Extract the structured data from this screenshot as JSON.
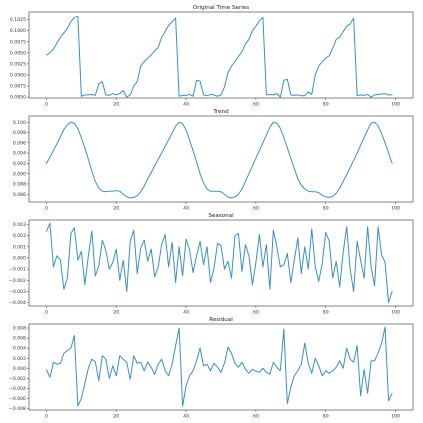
{
  "style": {
    "line_color": "#3b8fc0"
  },
  "chart_data": [
    {
      "type": "line",
      "title": "Original Time Series",
      "xlim": [
        -5,
        105
      ],
      "ylim": [
        0.0848,
        0.1042
      ],
      "xticks": [
        0,
        20,
        40,
        60,
        80,
        100
      ],
      "yticks": [
        0.085,
        0.0875,
        0.09,
        0.0925,
        0.095,
        0.0975,
        0.1,
        0.1025
      ],
      "ytick_labels": [
        "0.0850",
        "0.0875",
        "0.0900",
        "0.0925",
        "0.0950",
        "0.0975",
        "0.1000",
        "0.1025"
      ],
      "x": [
        0,
        1,
        2,
        3,
        4,
        5,
        6,
        7,
        8,
        9,
        10,
        11,
        12,
        13,
        14,
        15,
        16,
        17,
        18,
        19,
        20,
        21,
        22,
        23,
        24,
        25,
        26,
        27,
        28,
        29,
        30,
        31,
        32,
        33,
        34,
        35,
        36,
        37,
        38,
        39,
        40,
        41,
        42,
        43,
        44,
        45,
        46,
        47,
        48,
        49,
        50,
        51,
        52,
        53,
        54,
        55,
        56,
        57,
        58,
        59,
        60,
        61,
        62,
        63,
        64,
        65,
        66,
        67,
        68,
        69,
        70,
        71,
        72,
        73,
        74,
        75,
        76,
        77,
        78,
        79,
        80,
        81,
        82,
        83,
        84,
        85,
        86,
        87,
        88,
        89,
        90,
        91,
        92,
        93,
        94,
        95,
        96,
        97,
        98,
        99
      ],
      "y": [
        0.0945,
        0.095,
        0.0958,
        0.0972,
        0.0985,
        0.0995,
        0.1005,
        0.102,
        0.103,
        0.1032,
        0.0852,
        0.0855,
        0.0855,
        0.0856,
        0.0854,
        0.088,
        0.0885,
        0.0855,
        0.0854,
        0.0858,
        0.0855,
        0.0858,
        0.0865,
        0.085,
        0.0855,
        0.0875,
        0.0885,
        0.092,
        0.093,
        0.0938,
        0.0945,
        0.0955,
        0.0962,
        0.0985,
        0.0998,
        0.1012,
        0.102,
        0.1028,
        0.0852,
        0.0854,
        0.0854,
        0.0856,
        0.0852,
        0.0888,
        0.0886,
        0.0855,
        0.0853,
        0.0856,
        0.0855,
        0.0852,
        0.0855,
        0.0873,
        0.0905,
        0.092,
        0.093,
        0.0942,
        0.0952,
        0.097,
        0.098,
        0.1,
        0.101,
        0.1022,
        0.103,
        0.0855,
        0.0856,
        0.0855,
        0.0858,
        0.085,
        0.0888,
        0.089,
        0.0855,
        0.0854,
        0.0855,
        0.0853,
        0.0853,
        0.0862,
        0.0856,
        0.09,
        0.092,
        0.093,
        0.0938,
        0.0943,
        0.096,
        0.098,
        0.0985,
        0.0998,
        0.101,
        0.1015,
        0.1028,
        0.0853,
        0.0855,
        0.0854,
        0.0856,
        0.085,
        0.0855,
        0.0856,
        0.0857,
        0.0858,
        0.0855,
        0.0855
      ]
    },
    {
      "type": "line",
      "title": "Trend",
      "xlim": [
        -5,
        105
      ],
      "ylim": [
        0.0845,
        0.1012
      ],
      "xticks": [
        0,
        20,
        40,
        60,
        80,
        100
      ],
      "yticks": [
        0.086,
        0.088,
        0.09,
        0.092,
        0.094,
        0.096,
        0.098,
        0.1
      ],
      "ytick_labels": [
        "0.086",
        "0.088",
        "0.090",
        "0.092",
        "0.094",
        "0.096",
        "0.098",
        "0.100"
      ],
      "x": [
        0,
        1,
        2,
        3,
        4,
        5,
        6,
        7,
        8,
        9,
        10,
        11,
        12,
        13,
        14,
        15,
        16,
        17,
        18,
        19,
        20,
        21,
        22,
        23,
        24,
        25,
        26,
        27,
        28,
        29,
        30,
        31,
        32,
        33,
        34,
        35,
        36,
        37,
        38,
        39,
        40,
        41,
        42,
        43,
        44,
        45,
        46,
        47,
        48,
        49,
        50,
        51,
        52,
        53,
        54,
        55,
        56,
        57,
        58,
        59,
        60,
        61,
        62,
        63,
        64,
        65,
        66,
        67,
        68,
        69,
        70,
        71,
        72,
        73,
        74,
        75,
        76,
        77,
        78,
        79,
        80,
        81,
        82,
        83,
        84,
        85,
        86,
        87,
        88,
        89,
        90,
        91,
        92,
        93,
        94,
        95,
        96,
        97,
        98,
        99
      ],
      "y": [
        0.092,
        0.0932,
        0.0945,
        0.0958,
        0.0972,
        0.0986,
        0.0995,
        0.1,
        0.0998,
        0.0987,
        0.097,
        0.095,
        0.0928,
        0.0905,
        0.0885,
        0.0872,
        0.0866,
        0.0865,
        0.0866,
        0.0866,
        0.0867,
        0.0866,
        0.086,
        0.0855,
        0.0853,
        0.0854,
        0.0857,
        0.0865,
        0.0876,
        0.089,
        0.0902,
        0.0915,
        0.0928,
        0.094,
        0.0953,
        0.0966,
        0.0979,
        0.0992,
        0.1,
        0.0997,
        0.0985,
        0.0965,
        0.0945,
        0.0923,
        0.09,
        0.0882,
        0.087,
        0.0866,
        0.0866,
        0.0866,
        0.0865,
        0.086,
        0.0855,
        0.0853,
        0.0855,
        0.086,
        0.087,
        0.0885,
        0.09,
        0.0915,
        0.093,
        0.0945,
        0.096,
        0.0975,
        0.099,
        0.1,
        0.0998,
        0.0988,
        0.097,
        0.095,
        0.093,
        0.091,
        0.089,
        0.0878,
        0.087,
        0.0866,
        0.0865,
        0.0865,
        0.0863,
        0.0858,
        0.0855,
        0.0854,
        0.0856,
        0.0862,
        0.0872,
        0.0885,
        0.0898,
        0.0912,
        0.0926,
        0.094,
        0.0955,
        0.097,
        0.0985,
        0.0998,
        0.1,
        0.0993,
        0.0978,
        0.096,
        0.094,
        0.092
      ]
    },
    {
      "type": "line",
      "title": "Seasonal",
      "xlim": [
        -5,
        105
      ],
      "ylim": [
        -0.0043,
        0.0034
      ],
      "xticks": [
        0,
        20,
        40,
        60,
        80,
        100
      ],
      "yticks": [
        -0.004,
        -0.003,
        -0.002,
        -0.001,
        0.0,
        0.001,
        0.002,
        0.003
      ],
      "ytick_labels": [
        "−0.004",
        "−0.003",
        "−0.002",
        "−0.001",
        "0.000",
        "0.001",
        "0.002",
        "0.003"
      ],
      "x": [
        0,
        1,
        2,
        3,
        4,
        5,
        6,
        7,
        8,
        9,
        10,
        11,
        12,
        13,
        14,
        15,
        16,
        17,
        18,
        19,
        20,
        21,
        22,
        23,
        24,
        25,
        26,
        27,
        28,
        29,
        30,
        31,
        32,
        33,
        34,
        35,
        36,
        37,
        38,
        39,
        40,
        41,
        42,
        43,
        44,
        45,
        46,
        47,
        48,
        49,
        50,
        51,
        52,
        53,
        54,
        55,
        56,
        57,
        58,
        59,
        60,
        61,
        62,
        63,
        64,
        65,
        66,
        67,
        68,
        69,
        70,
        71,
        72,
        73,
        74,
        75,
        76,
        77,
        78,
        79,
        80,
        81,
        82,
        83,
        84,
        85,
        86,
        87,
        88,
        89,
        90,
        91,
        92,
        93,
        94,
        95,
        96,
        97,
        98,
        99
      ],
      "y": [
        0.0024,
        0.0031,
        -0.0008,
        0.0002,
        -0.0002,
        -0.0028,
        -0.0018,
        0.0022,
        0.0027,
        -0.0002,
        0.0006,
        -0.0024,
        0.0002,
        0.0024,
        -0.0016,
        -0.0007,
        0.0016,
        0.0007,
        -0.001,
        -0.0004,
        0.0008,
        -0.002,
        -0.0002,
        -0.003,
        0.0015,
        0.0025,
        -0.0014,
        0.0009,
        0.0016,
        -0.0003,
        0.0008,
        -0.0017,
        -0.0008,
        0.0012,
        0.0021,
        -0.0008,
        0.0014,
        -0.0022,
        0.001,
        -0.0016,
        0.0017,
        0.0007,
        -0.0013,
        0.0002,
        0.0015,
        -0.0006,
        0.001,
        -0.0022,
        -0.0009,
        0.0013,
        0.0011,
        -0.001,
        -0.0003,
        -0.0018,
        0.002,
        0.0022,
        -0.0012,
        0.0012,
        0.0002,
        -0.0024,
        -0.0004,
        0.0021,
        -0.0008,
        0.0012,
        -0.0028,
        0.0025,
        0.001,
        -0.0008,
        -0.0006,
        0.0004,
        -0.0022,
        -0.0002,
        0.0018,
        -0.0014,
        0.001,
        -0.001,
        0.0026,
        -0.0008,
        -0.0021,
        -0.0005,
        0.0023,
        0.0015,
        -0.0018,
        -0.0003,
        -0.0026,
        0.0005,
        0.0028,
        -0.001,
        -0.003,
        0.0015,
        -0.0002,
        -0.0018,
        0.0028,
        -0.0008,
        -0.0025,
        0.0028,
        0.0003,
        -0.0004,
        -0.004,
        -0.003
      ]
    },
    {
      "type": "line",
      "title": "Residual",
      "xlim": [
        -5,
        105
      ],
      "ylim": [
        -0.0083,
        0.0088
      ],
      "xticks": [
        0,
        20,
        40,
        60,
        80,
        100
      ],
      "yticks": [
        -0.008,
        -0.006,
        -0.004,
        -0.002,
        0.0,
        0.002,
        0.004,
        0.006,
        0.008
      ],
      "ytick_labels": [
        "−0.008",
        "−0.006",
        "−0.004",
        "−0.002",
        "0.000",
        "0.002",
        "0.004",
        "0.006",
        "0.008"
      ],
      "x": [
        0,
        1,
        2,
        3,
        4,
        5,
        6,
        7,
        8,
        9,
        10,
        11,
        12,
        13,
        14,
        15,
        16,
        17,
        18,
        19,
        20,
        21,
        22,
        23,
        24,
        25,
        26,
        27,
        28,
        29,
        30,
        31,
        32,
        33,
        34,
        35,
        36,
        37,
        38,
        39,
        40,
        41,
        42,
        43,
        44,
        45,
        46,
        47,
        48,
        49,
        50,
        51,
        52,
        53,
        54,
        55,
        56,
        57,
        58,
        59,
        60,
        61,
        62,
        63,
        64,
        65,
        66,
        67,
        68,
        69,
        70,
        71,
        72,
        73,
        74,
        75,
        76,
        77,
        78,
        79,
        80,
        81,
        82,
        83,
        84,
        85,
        86,
        87,
        88,
        89,
        90,
        91,
        92,
        93,
        94,
        95,
        96,
        97,
        98,
        99
      ],
      "y": [
        -0.0003,
        -0.0018,
        0.0012,
        0.0008,
        0.001,
        0.003,
        0.0035,
        0.004,
        0.0065,
        -0.0075,
        -0.006,
        -0.003,
        0.0,
        0.0018,
        0.0013,
        -0.0025,
        0.0025,
        0.0018,
        -0.002,
        0.0005,
        -0.0015,
        0.0025,
        0.0018,
        0.0012,
        -0.0022,
        0.0025,
        0.001,
        0.0012,
        -0.0005,
        0.0012,
        0.0002,
        -0.0012,
        0.0008,
        0.0018,
        -0.0005,
        -0.0015,
        0.0008,
        0.0045,
        0.008,
        -0.0075,
        -0.0035,
        -0.0015,
        -0.0005,
        0.0015,
        0.004,
        0.0005,
        0.0008,
        -0.0005,
        0.001,
        0.0002,
        -0.0008,
        0.001,
        0.0042,
        0.003,
        0.001,
        0.0002,
        0.0012,
        -0.0002,
        -0.001,
        -0.0002,
        -0.0006,
        -0.0008,
        0.0,
        -0.0008,
        -0.0012,
        0.0012,
        0.0002,
        -0.0005,
        0.0078,
        -0.007,
        -0.0038,
        -0.0015,
        -0.0005,
        0.0008,
        0.005,
        0.001,
        -0.001,
        0.002,
        0.0005,
        -0.0015,
        -0.0005,
        -0.001,
        -0.0005,
        0.0002,
        0.0015,
        0.0,
        0.004,
        0.0018,
        0.0012,
        0.0045,
        -0.0055,
        -0.0002,
        -0.005,
        0.0015,
        0.0015,
        0.003,
        0.005,
        0.0082,
        -0.0065,
        -0.005
      ]
    }
  ]
}
